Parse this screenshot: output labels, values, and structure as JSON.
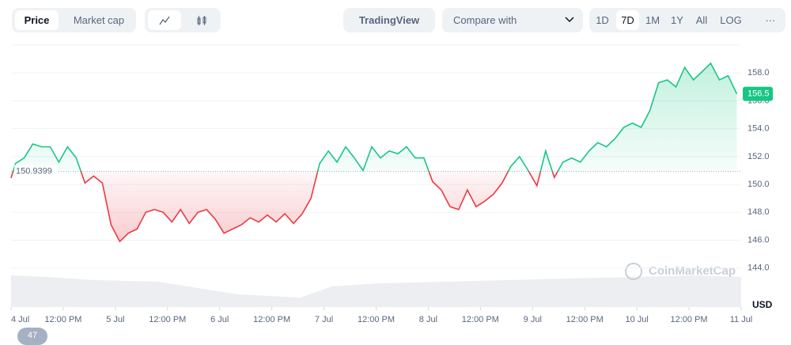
{
  "toolbar": {
    "tabs": [
      "Price",
      "Market cap"
    ],
    "tradingview": "TradingView",
    "compare": "Compare with",
    "ranges": [
      "1D",
      "7D",
      "1M",
      "1Y",
      "All",
      "LOG"
    ],
    "active_range": "7D"
  },
  "chart_data": {
    "type": "line",
    "x": [
      0,
      1,
      3,
      5,
      7,
      9,
      11,
      13,
      15,
      17,
      19,
      21,
      23,
      25,
      27,
      29,
      31,
      33,
      35,
      37,
      39,
      41,
      43,
      45,
      47,
      49,
      51,
      53,
      55,
      57,
      59,
      61,
      63,
      65,
      67,
      69,
      71,
      73,
      75,
      77,
      79,
      81,
      83,
      85,
      87,
      89,
      91,
      93,
      95,
      97,
      99,
      101,
      103,
      105,
      107,
      109,
      111,
      113,
      115,
      117,
      119,
      121,
      123,
      125,
      127,
      129,
      131,
      133,
      135,
      137,
      139,
      141,
      143,
      145,
      147,
      149,
      151,
      153,
      155,
      157,
      159,
      161,
      163,
      165,
      167
    ],
    "series": [
      {
        "name": "Price",
        "values": [
          150.46,
          151.5,
          151.9,
          152.9,
          152.7,
          152.7,
          151.6,
          152.7,
          151.9,
          150.1,
          150.6,
          150.1,
          147.1,
          145.9,
          146.5,
          146.8,
          148.0,
          148.2,
          148.0,
          147.3,
          148.2,
          147.2,
          148.0,
          148.2,
          147.5,
          146.5,
          146.8,
          147.1,
          147.6,
          147.3,
          147.8,
          147.3,
          147.9,
          147.2,
          147.9,
          149.0,
          151.5,
          152.4,
          151.6,
          152.7,
          151.9,
          151.0,
          152.7,
          151.9,
          152.4,
          152.2,
          152.7,
          151.9,
          151.9,
          150.2,
          149.6,
          148.4,
          148.2,
          149.6,
          148.4,
          148.8,
          149.3,
          150.1,
          151.3,
          152.0,
          151.0,
          149.9,
          152.4,
          150.5,
          151.6,
          151.9,
          151.6,
          152.4,
          153.0,
          152.7,
          153.3,
          154.1,
          154.4,
          154.1,
          155.3,
          157.3,
          157.5,
          157.0,
          158.4,
          157.5,
          158.1,
          158.7,
          157.5,
          157.8,
          156.5
        ]
      }
    ],
    "up_color": "#16c784",
    "down_color": "#ea3943",
    "baseline": 150.9399,
    "last_price": 156.5,
    "xlim": [
      0,
      168
    ],
    "xticks": [
      {
        "value": 0,
        "label": "4 Jul"
      },
      {
        "value": 12,
        "label": "12:00 PM"
      },
      {
        "value": 24,
        "label": "5 Jul"
      },
      {
        "value": 36,
        "label": "12:00 PM"
      },
      {
        "value": 48,
        "label": "6 Jul"
      },
      {
        "value": 60,
        "label": "12:00 PM"
      },
      {
        "value": 72,
        "label": "7 Jul"
      },
      {
        "value": 84,
        "label": "12:00 PM"
      },
      {
        "value": 96,
        "label": "8 Jul"
      },
      {
        "value": 108,
        "label": "12:00 PM"
      },
      {
        "value": 120,
        "label": "9 Jul"
      },
      {
        "value": 132,
        "label": "12:00 PM"
      },
      {
        "value": 144,
        "label": "10 Jul"
      },
      {
        "value": 156,
        "label": "12:00 PM"
      },
      {
        "value": 168,
        "label": "11 Jul"
      }
    ],
    "ylim": [
      141.2,
      160
    ],
    "yticks": [
      {
        "value": 144,
        "label": "144.0"
      },
      {
        "value": 146,
        "label": "146.0"
      },
      {
        "value": 148,
        "label": "148.0"
      },
      {
        "value": 150,
        "label": "150.0"
      },
      {
        "value": 152,
        "label": "152.0"
      },
      {
        "value": 154,
        "label": "154.0"
      },
      {
        "value": 156,
        "label": "156.0"
      },
      {
        "value": 158,
        "label": "158.0"
      }
    ],
    "grid": true,
    "currency": "USD",
    "watermark": "CoinMarketCap"
  },
  "badge": "47"
}
